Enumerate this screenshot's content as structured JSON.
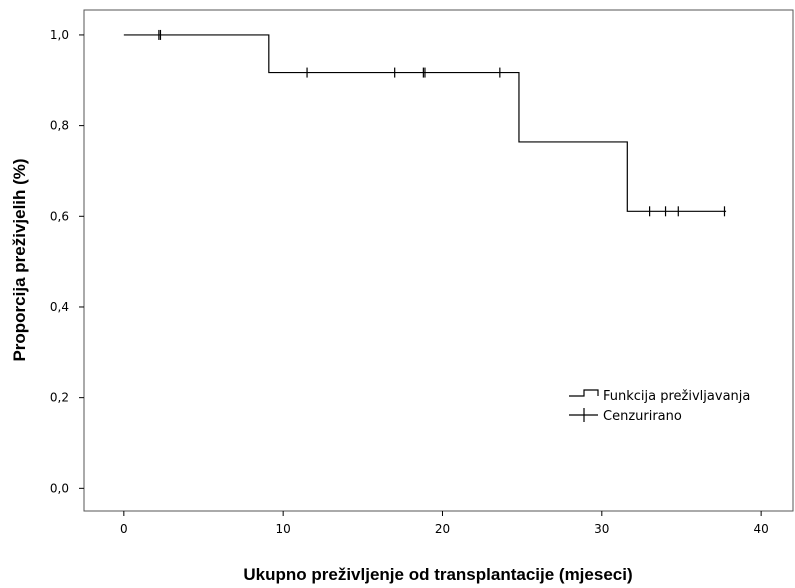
{
  "chart_data": {
    "type": "line",
    "xlabel": "Ukupno preživljenje od transplantacije (mjeseci)",
    "ylabel": "Proporcija preživjelih (%)",
    "xlim": [
      -2.5,
      42
    ],
    "ylim": [
      -0.05,
      1.055
    ],
    "x_ticks": [
      0,
      10,
      20,
      30,
      40
    ],
    "x_tick_labels": [
      "0",
      "10",
      "20",
      "30",
      "40"
    ],
    "y_ticks": [
      0.0,
      0.2,
      0.4,
      0.6,
      0.8,
      1.0
    ],
    "y_tick_labels": [
      "0,0",
      "0,2",
      "0,4",
      "0,6",
      "0,8",
      "1,0"
    ],
    "grid": false,
    "legend_position": "bottom-right",
    "series": [
      {
        "name": "Funkcija preživljavanja",
        "kind": "step",
        "x": [
          0,
          9.1,
          24.8,
          31.6,
          37.8
        ],
        "y": [
          1.0,
          0.917,
          0.764,
          0.611,
          0.611
        ]
      },
      {
        "name": "Cenzurirano",
        "kind": "censor-marks",
        "x": [
          2.2,
          2.3,
          11.5,
          17.0,
          18.8,
          18.9,
          23.6,
          33.0,
          34.0,
          34.8,
          37.7
        ],
        "y": [
          1.0,
          1.0,
          0.917,
          0.917,
          0.917,
          0.917,
          0.917,
          0.611,
          0.611,
          0.611,
          0.611
        ]
      }
    ]
  }
}
